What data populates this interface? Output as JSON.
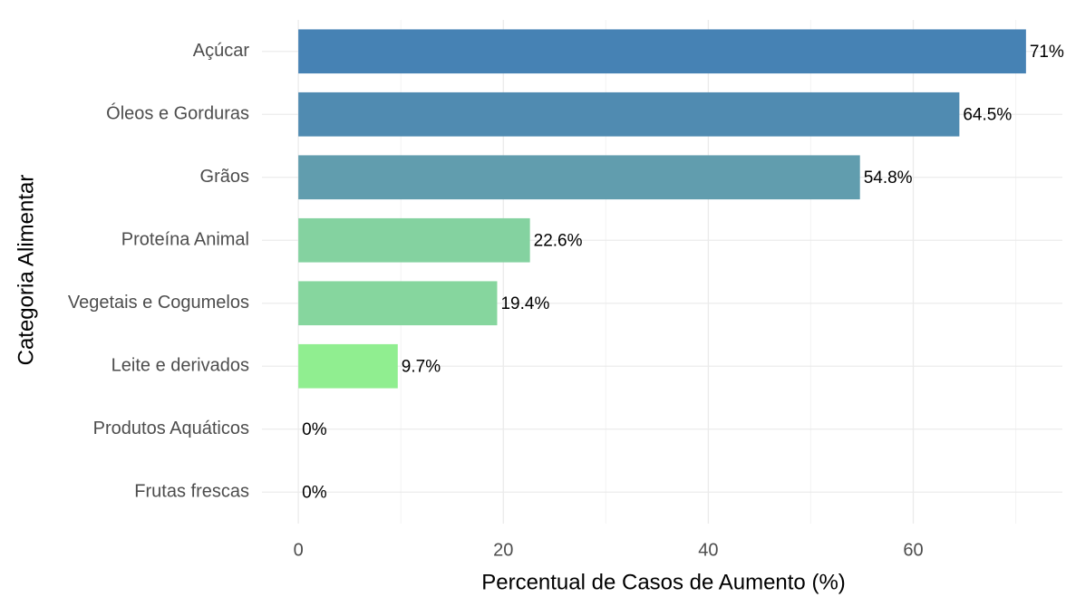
{
  "chart_data": {
    "type": "hbar",
    "xlabel": "Percentual de Casos de Aumento (%)",
    "ylabel": "Categoria Alimentar",
    "categories": [
      "Açúcar",
      "Óleos e Gorduras",
      "Grãos",
      "Proteína Animal",
      "Vegetais e Cogumelos",
      "Leite e derivados",
      "Produtos Aquáticos",
      "Frutas frescas"
    ],
    "values": [
      71,
      64.5,
      54.8,
      22.6,
      19.4,
      9.7,
      0,
      0
    ],
    "value_labels": [
      "71%",
      "64.5%",
      "54.8%",
      "22.6%",
      "19.4%",
      "9.7%",
      "0%",
      "0%"
    ],
    "colors": [
      "#4682b4",
      "#508bb1",
      "#619dae",
      "#84d2a0",
      "#86d69e",
      "#90ee90",
      "#90ee90",
      "#90ee90"
    ],
    "xlim": [
      -3.55,
      74.55
    ],
    "xticks": [
      0,
      20,
      40,
      60
    ],
    "x_minor_ticks": [
      10,
      30,
      50,
      70
    ],
    "grid": true
  }
}
